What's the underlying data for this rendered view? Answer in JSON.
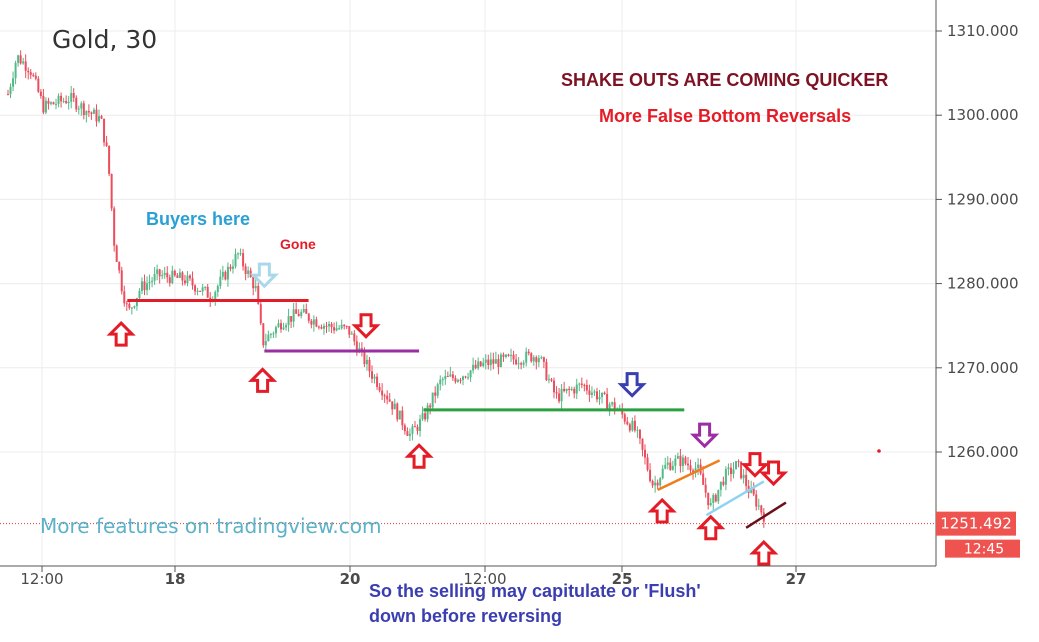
{
  "chart_data": {
    "type": "candlestick",
    "title": "Gold, 30",
    "symbol": "Gold",
    "interval": "30",
    "ylim": [
      1246,
      1313
    ],
    "y_ticks": [
      1260,
      1270,
      1280,
      1290,
      1300,
      1310
    ],
    "y_tick_labels": [
      "1260.000",
      "1270.000",
      "1280.000",
      "1290.000",
      "1300.000",
      "1310.000"
    ],
    "x_tick_labels": [
      "12:00",
      "18",
      "20",
      "12:00",
      "25",
      "27"
    ],
    "current_price": 1251.492,
    "current_price_label": "1251.492",
    "countdown_label": "12:45",
    "watermark": "More features on tradingview.com",
    "price_path": [
      [
        0.0,
        1302.5
      ],
      [
        0.01,
        1307.0
      ],
      [
        0.025,
        1305.5
      ],
      [
        0.04,
        1301.0
      ],
      [
        0.07,
        1302.0
      ],
      [
        0.09,
        1300.5
      ],
      [
        0.105,
        1299.5
      ],
      [
        0.113,
        1295.0
      ],
      [
        0.12,
        1285.0
      ],
      [
        0.128,
        1280.0
      ],
      [
        0.136,
        1276.5
      ],
      [
        0.15,
        1279.5
      ],
      [
        0.17,
        1281.0
      ],
      [
        0.2,
        1280.5
      ],
      [
        0.23,
        1278.5
      ],
      [
        0.26,
        1283.5
      ],
      [
        0.28,
        1279.5
      ],
      [
        0.288,
        1273.0
      ],
      [
        0.31,
        1275.5
      ],
      [
        0.33,
        1276.5
      ],
      [
        0.36,
        1275.0
      ],
      [
        0.385,
        1274.5
      ],
      [
        0.41,
        1269.5
      ],
      [
        0.43,
        1266.5
      ],
      [
        0.455,
        1262.0
      ],
      [
        0.47,
        1264.0
      ],
      [
        0.49,
        1268.5
      ],
      [
        0.51,
        1269.0
      ],
      [
        0.54,
        1270.5
      ],
      [
        0.57,
        1271.0
      ],
      [
        0.6,
        1271.5
      ],
      [
        0.62,
        1266.5
      ],
      [
        0.65,
        1268.0
      ],
      [
        0.69,
        1265.0
      ],
      [
        0.71,
        1262.5
      ],
      [
        0.73,
        1256.0
      ],
      [
        0.745,
        1258.5
      ],
      [
        0.76,
        1259.0
      ],
      [
        0.78,
        1258.0
      ],
      [
        0.795,
        1253.5
      ],
      [
        0.81,
        1257.0
      ],
      [
        0.825,
        1258.5
      ],
      [
        0.838,
        1255.5
      ],
      [
        0.847,
        1254.0
      ],
      [
        0.855,
        1252.5
      ]
    ],
    "annotations": {
      "heading": "SHAKE OUTS ARE COMING QUICKER",
      "subheading": "More False Bottom Reversals",
      "buyers": "Buyers here",
      "gone": "Gone",
      "footer_line1": "So the selling may capitulate or 'Flush'",
      "footer_line2": "down before reversing"
    },
    "levels": [
      {
        "price": 1278.0,
        "x_from": 0.135,
        "x_to": 0.34,
        "color": "#e41c27"
      },
      {
        "price": 1272.0,
        "x_from": 0.29,
        "x_to": 0.465,
        "color": "#9b2ea3"
      },
      {
        "price": 1265.0,
        "x_from": 0.47,
        "x_to": 0.765,
        "color": "#2ba040"
      }
    ],
    "trendlines": [
      {
        "from": [
          0.735,
          1255.5
        ],
        "to": [
          0.805,
          1259.0
        ],
        "color": "#f07d1a"
      },
      {
        "from": [
          0.79,
          1252.5
        ],
        "to": [
          0.855,
          1256.5
        ],
        "color": "#8fd3f0"
      },
      {
        "from": [
          0.835,
          1251.0
        ],
        "to": [
          0.88,
          1254.0
        ],
        "color": "#6b0f1a"
      }
    ],
    "up_arrows": [
      {
        "x": 0.128,
        "price": 1274.0,
        "color": "#e41c27"
      },
      {
        "x": 0.288,
        "price": 1268.5,
        "color": "#e41c27"
      },
      {
        "x": 0.465,
        "price": 1259.5,
        "color": "#e41c27"
      },
      {
        "x": 0.74,
        "price": 1253.0,
        "color": "#e41c27"
      },
      {
        "x": 0.795,
        "price": 1251.0,
        "color": "#e41c27"
      },
      {
        "x": 0.855,
        "price": 1248.0,
        "color": "#e41c27"
      }
    ],
    "down_arrows": [
      {
        "x": 0.29,
        "price": 1281.0,
        "color": "#a9d8ea"
      },
      {
        "x": 0.405,
        "price": 1275.0,
        "color": "#e41c27"
      },
      {
        "x": 0.706,
        "price": 1268.0,
        "color": "#3a3eb0"
      },
      {
        "x": 0.788,
        "price": 1262.0,
        "color": "#9b2ea3"
      },
      {
        "x": 0.845,
        "price": 1258.5,
        "color": "#e41c27"
      },
      {
        "x": 0.866,
        "price": 1257.5,
        "color": "#e41c27"
      }
    ]
  }
}
